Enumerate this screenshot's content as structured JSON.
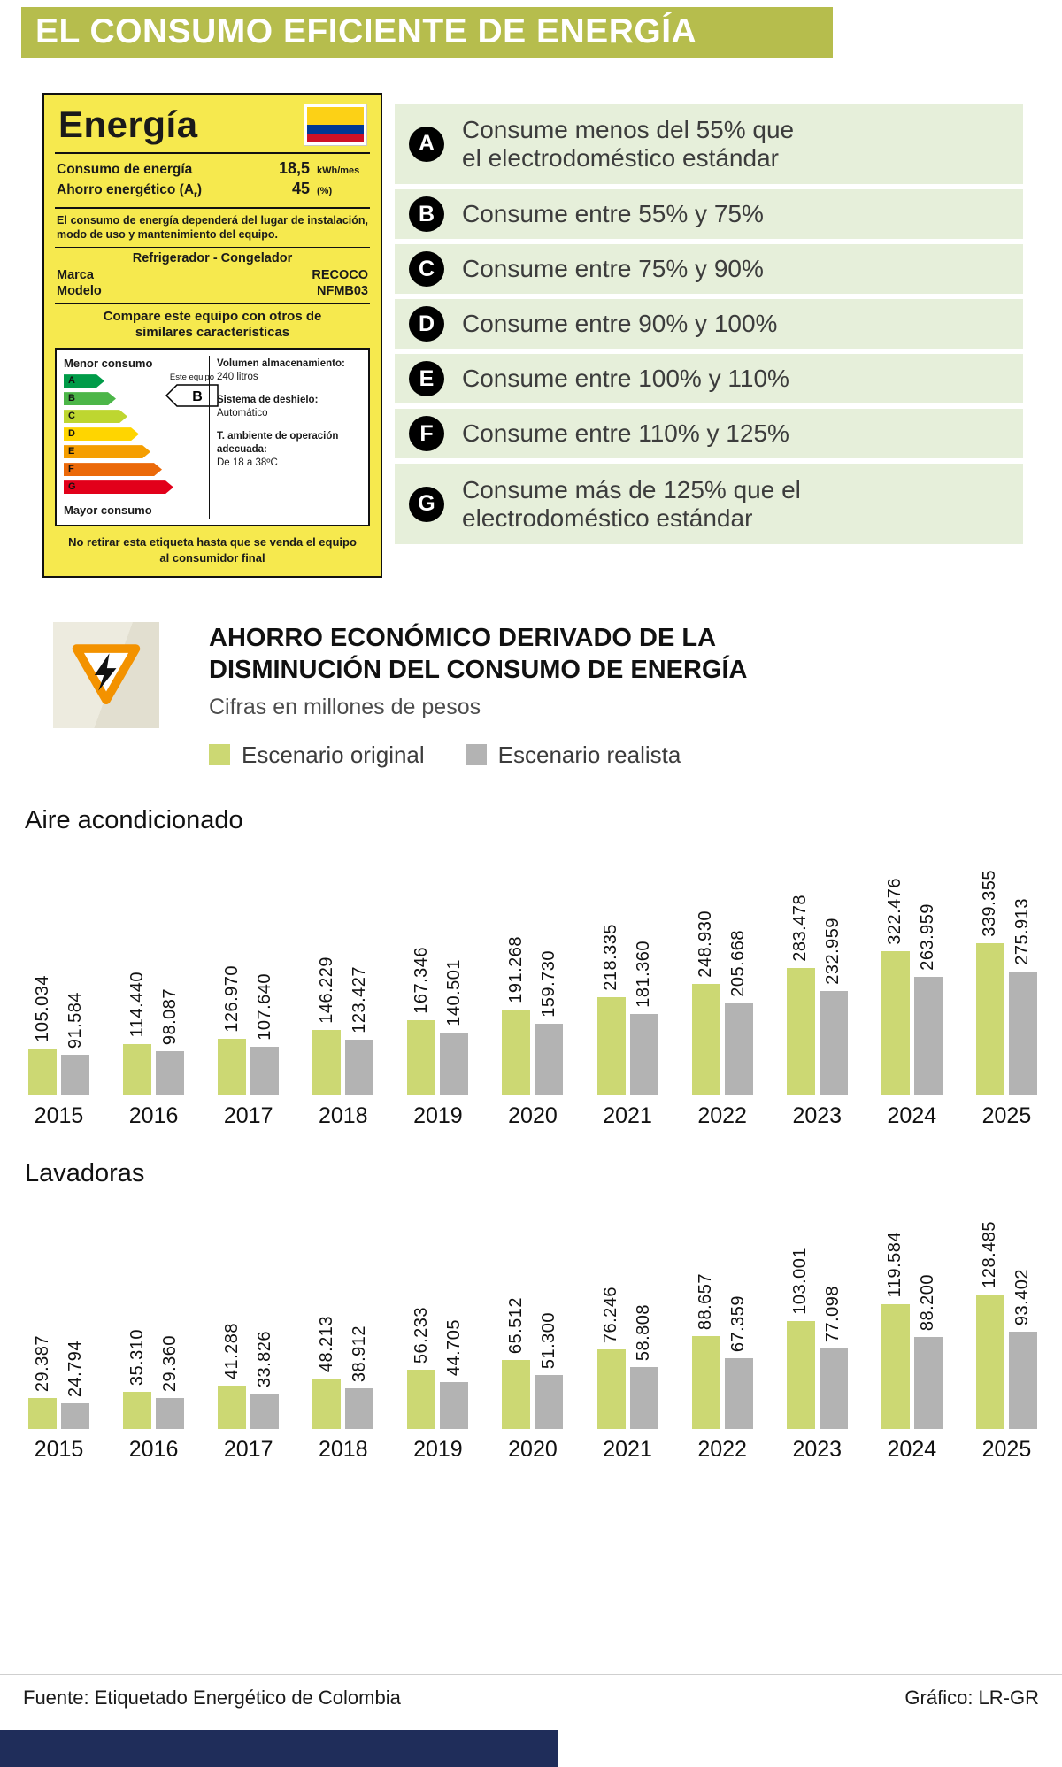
{
  "header": {
    "title": "EL CONSUMO EFICIENTE DE ENERGÍA"
  },
  "energy_label": {
    "title": "Energía",
    "consumo_label": "Consumo de energía",
    "consumo_value": "18,5",
    "consumo_unit": "kWh/mes",
    "ahorro_label_prefix": "Ahorro energético (A",
    "ahorro_label_sub": "r",
    "ahorro_label_suffix": ")",
    "ahorro_value": "45",
    "ahorro_unit": "(%)",
    "note": "El consumo de energía dependerá del lugar de instalación, modo de uso y mantenimiento del equipo.",
    "appliance": "Refrigerador - Congelador",
    "marca_label": "Marca",
    "marca_value": "RECOCO",
    "modelo_label": "Modelo",
    "modelo_value": "NFMB03",
    "compare_text": "Compare este equipo con otros de similares características",
    "menor_consumo": "Menor consumo",
    "mayor_consumo": "Mayor consumo",
    "este_equipo_label": "Este equipo",
    "este_equipo_rating": "B",
    "scale": [
      {
        "letter": "A",
        "color": "#009b48"
      },
      {
        "letter": "B",
        "color": "#4cb648"
      },
      {
        "letter": "C",
        "color": "#bed630"
      },
      {
        "letter": "D",
        "color": "#ffd500"
      },
      {
        "letter": "E",
        "color": "#f59e00"
      },
      {
        "letter": "F",
        "color": "#eb6909"
      },
      {
        "letter": "G",
        "color": "#e2001a"
      }
    ],
    "specs": [
      {
        "label": "Volumen almacenamiento:",
        "value": "240 litros"
      },
      {
        "label": "Sistema de deshielo:",
        "value": "Automático"
      },
      {
        "label": "T. ambiente de operación adecuada:",
        "value": "De 18 a 38ºC"
      }
    ],
    "footer_note": "No retirar esta etiqueta hasta que se venda el equipo al consumidor final"
  },
  "ratings": [
    {
      "letter": "A",
      "line1": "Consume menos del 55% que",
      "line2": "el electrodoméstico estándar"
    },
    {
      "letter": "B",
      "line1": "Consume entre 55% y 75%",
      "line2": ""
    },
    {
      "letter": "C",
      "line1": "Consume entre 75% y 90%",
      "line2": ""
    },
    {
      "letter": "D",
      "line1": "Consume entre 90% y 100%",
      "line2": ""
    },
    {
      "letter": "E",
      "line1": "Consume entre 100% y 110%",
      "line2": ""
    },
    {
      "letter": "F",
      "line1": "Consume entre 110% y 125%",
      "line2": ""
    },
    {
      "letter": "G",
      "line1": "Consume más de 125% que el",
      "line2": "electrodoméstico estándar"
    }
  ],
  "section": {
    "title_line1": "AHORRO ECONÓMICO DERIVADO DE LA",
    "title_line2": "DISMINUCIÓN DEL CONSUMO DE ENERGÍA",
    "subtitle": "Cifras en millones de pesos",
    "warning_icon": "electric-hazard-triangle-icon",
    "legend": [
      {
        "label": "Escenario original",
        "color": "#ccd873"
      },
      {
        "label": "Escenario realista",
        "color": "#b3b3b3"
      }
    ]
  },
  "chart_data": [
    {
      "type": "bar",
      "title": "Aire acondicionado",
      "categories": [
        "2015",
        "2016",
        "2017",
        "2018",
        "2019",
        "2020",
        "2021",
        "2022",
        "2023",
        "2024",
        "2025"
      ],
      "series": [
        {
          "name": "Escenario original",
          "color": "#ccd873",
          "values": [
            105034,
            114440,
            126970,
            146229,
            167346,
            191268,
            218335,
            248930,
            283478,
            322476,
            339355
          ]
        },
        {
          "name": "Escenario realista",
          "color": "#b3b3b3",
          "values": [
            91584,
            98087,
            107640,
            123427,
            140501,
            159730,
            181360,
            205668,
            232959,
            263959,
            275913
          ]
        }
      ],
      "value_label_format": "thousands-dot",
      "legend_position": "top",
      "grid": false
    },
    {
      "type": "bar",
      "title": "Lavadoras",
      "categories": [
        "2015",
        "2016",
        "2017",
        "2018",
        "2019",
        "2020",
        "2021",
        "2022",
        "2023",
        "2024",
        "2025"
      ],
      "series": [
        {
          "name": "Escenario original",
          "color": "#ccd873",
          "values": [
            29387,
            35310,
            41288,
            48213,
            56233,
            65512,
            76246,
            88657,
            103001,
            119584,
            128485
          ]
        },
        {
          "name": "Escenario realista",
          "color": "#b3b3b3",
          "values": [
            24794,
            29360,
            33826,
            38912,
            44705,
            51300,
            58808,
            67359,
            77098,
            88200,
            93402
          ]
        }
      ],
      "value_label_format": "thousands-dot",
      "legend_position": "top",
      "grid": false
    }
  ],
  "footer": {
    "source": "Fuente: Etiquetado Energético de Colombia",
    "credit": "Gráfico: LR-GR"
  }
}
